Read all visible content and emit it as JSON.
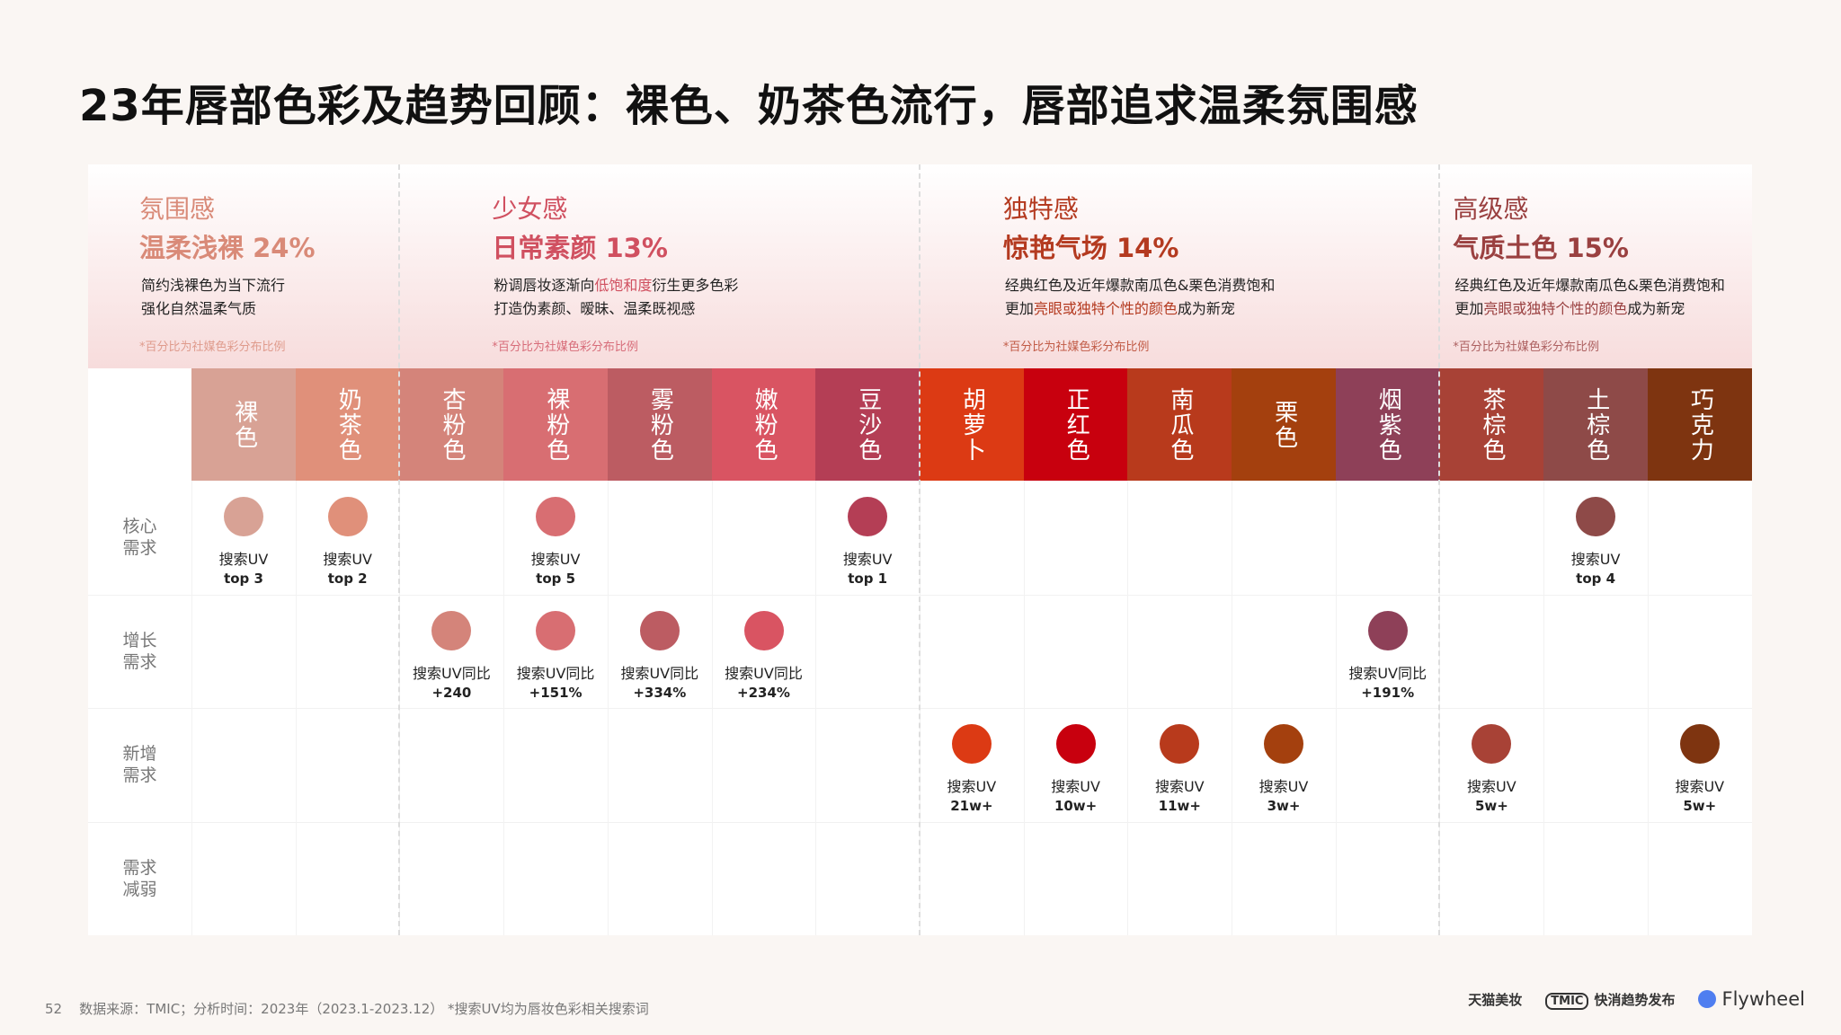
{
  "title": "23年唇部色彩及趋势回顾：裸色、奶茶色流行，唇部追求温柔氛围感",
  "groups": [
    {
      "category": "氛围感",
      "subtitle": "温柔浅裸 24%",
      "desc_lines": [
        [
          "简约浅裸色为当下流行"
        ],
        [
          "强化自然温柔气质"
        ]
      ],
      "note": "*百分比为社媒色彩分布比例",
      "color": "#d98a78"
    },
    {
      "category": "少女感",
      "subtitle": "日常素颜 13%",
      "desc_lines": [
        [
          "粉调唇妆逐渐向",
          "低饱和度",
          "衍生更多色彩"
        ],
        [
          "打造伪素颜、暧昧、温柔既视感"
        ]
      ],
      "note": "*百分比为社媒色彩分布比例",
      "color": "#d05060"
    },
    {
      "category": "独特感",
      "subtitle": "惊艳气场 14%",
      "desc_lines": [
        [
          "经典红色及近年爆款南瓜色&栗色消费饱和"
        ],
        [
          "更加",
          "亮眼或独特个性的颜色",
          "成为新宠"
        ]
      ],
      "note": "*百分比为社媒色彩分布比例",
      "color": "#b43a20"
    },
    {
      "category": "高级感",
      "subtitle": "气质土色 15%",
      "desc_lines": [
        [
          "经典红色及近年爆款南瓜色&栗色消费饱和"
        ],
        [
          "更加",
          "亮眼或独特个性的颜色",
          "成为新宠"
        ]
      ],
      "note": "*百分比为社媒色彩分布比例",
      "color": "#9a4040"
    }
  ],
  "rows": [
    "核心需求",
    "增长需求",
    "新增需求",
    "需求减弱"
  ],
  "colors": [
    {
      "name": "裸色",
      "hex": "#d8a295"
    },
    {
      "name": "奶茶色",
      "hex": "#e0907a"
    },
    {
      "name": "杏粉色",
      "hex": "#d4847a"
    },
    {
      "name": "裸粉色",
      "hex": "#d86e72"
    },
    {
      "name": "雾粉色",
      "hex": "#bc5c62"
    },
    {
      "name": "嫩粉色",
      "hex": "#d95462"
    },
    {
      "name": "豆沙色",
      "hex": "#b43e55"
    },
    {
      "name": "胡萝卜",
      "hex": "#dc3a14"
    },
    {
      "name": "正红色",
      "hex": "#c8000e"
    },
    {
      "name": "南瓜色",
      "hex": "#b83a1c"
    },
    {
      "name": "栗色",
      "hex": "#a4400e"
    },
    {
      "name": "烟紫色",
      "hex": "#8e4058"
    },
    {
      "name": "茶棕色",
      "hex": "#a84236"
    },
    {
      "name": "土棕色",
      "hex": "#8e4a48"
    },
    {
      "name": "巧克力",
      "hex": "#7e3410"
    }
  ],
  "cells": [
    {
      "col": 0,
      "row": 0,
      "l1": "搜索UV",
      "l2": "top 3"
    },
    {
      "col": 1,
      "row": 0,
      "l1": "搜索UV",
      "l2": "top 2"
    },
    {
      "col": 3,
      "row": 0,
      "l1": "搜索UV",
      "l2": "top 5"
    },
    {
      "col": 6,
      "row": 0,
      "l1": "搜索UV",
      "l2": "top 1"
    },
    {
      "col": 13,
      "row": 0,
      "l1": "搜索UV",
      "l2": "top 4"
    },
    {
      "col": 2,
      "row": 1,
      "l1": "搜索UV同比",
      "l2": "+240"
    },
    {
      "col": 3,
      "row": 1,
      "l1": "搜索UV同比",
      "l2": "+151%"
    },
    {
      "col": 4,
      "row": 1,
      "l1": "搜索UV同比",
      "l2": "+334%"
    },
    {
      "col": 5,
      "row": 1,
      "l1": "搜索UV同比",
      "l2": "+234%"
    },
    {
      "col": 11,
      "row": 1,
      "l1": "搜索UV同比",
      "l2": "+191%"
    },
    {
      "col": 7,
      "row": 2,
      "l1": "搜索UV",
      "l2": "21w+"
    },
    {
      "col": 8,
      "row": 2,
      "l1": "搜索UV",
      "l2": "10w+"
    },
    {
      "col": 9,
      "row": 2,
      "l1": "搜索UV",
      "l2": "11w+"
    },
    {
      "col": 10,
      "row": 2,
      "l1": "搜索UV",
      "l2": "3w+"
    },
    {
      "col": 12,
      "row": 2,
      "l1": "搜索UV",
      "l2": "5w+"
    },
    {
      "col": 14,
      "row": 2,
      "l1": "搜索UV",
      "l2": "5w+"
    }
  ],
  "footer": {
    "page": "52",
    "source": "数据来源：TMIC；分析时间：2023年（2023.1-2023.12）   *搜索UV均为唇妆色彩相关搜索词"
  },
  "logos": {
    "tmall": "天猫美妆",
    "tmic_badge": "TMIC",
    "tmic": "快消趋势发布",
    "flywheel": "Flywheel"
  }
}
